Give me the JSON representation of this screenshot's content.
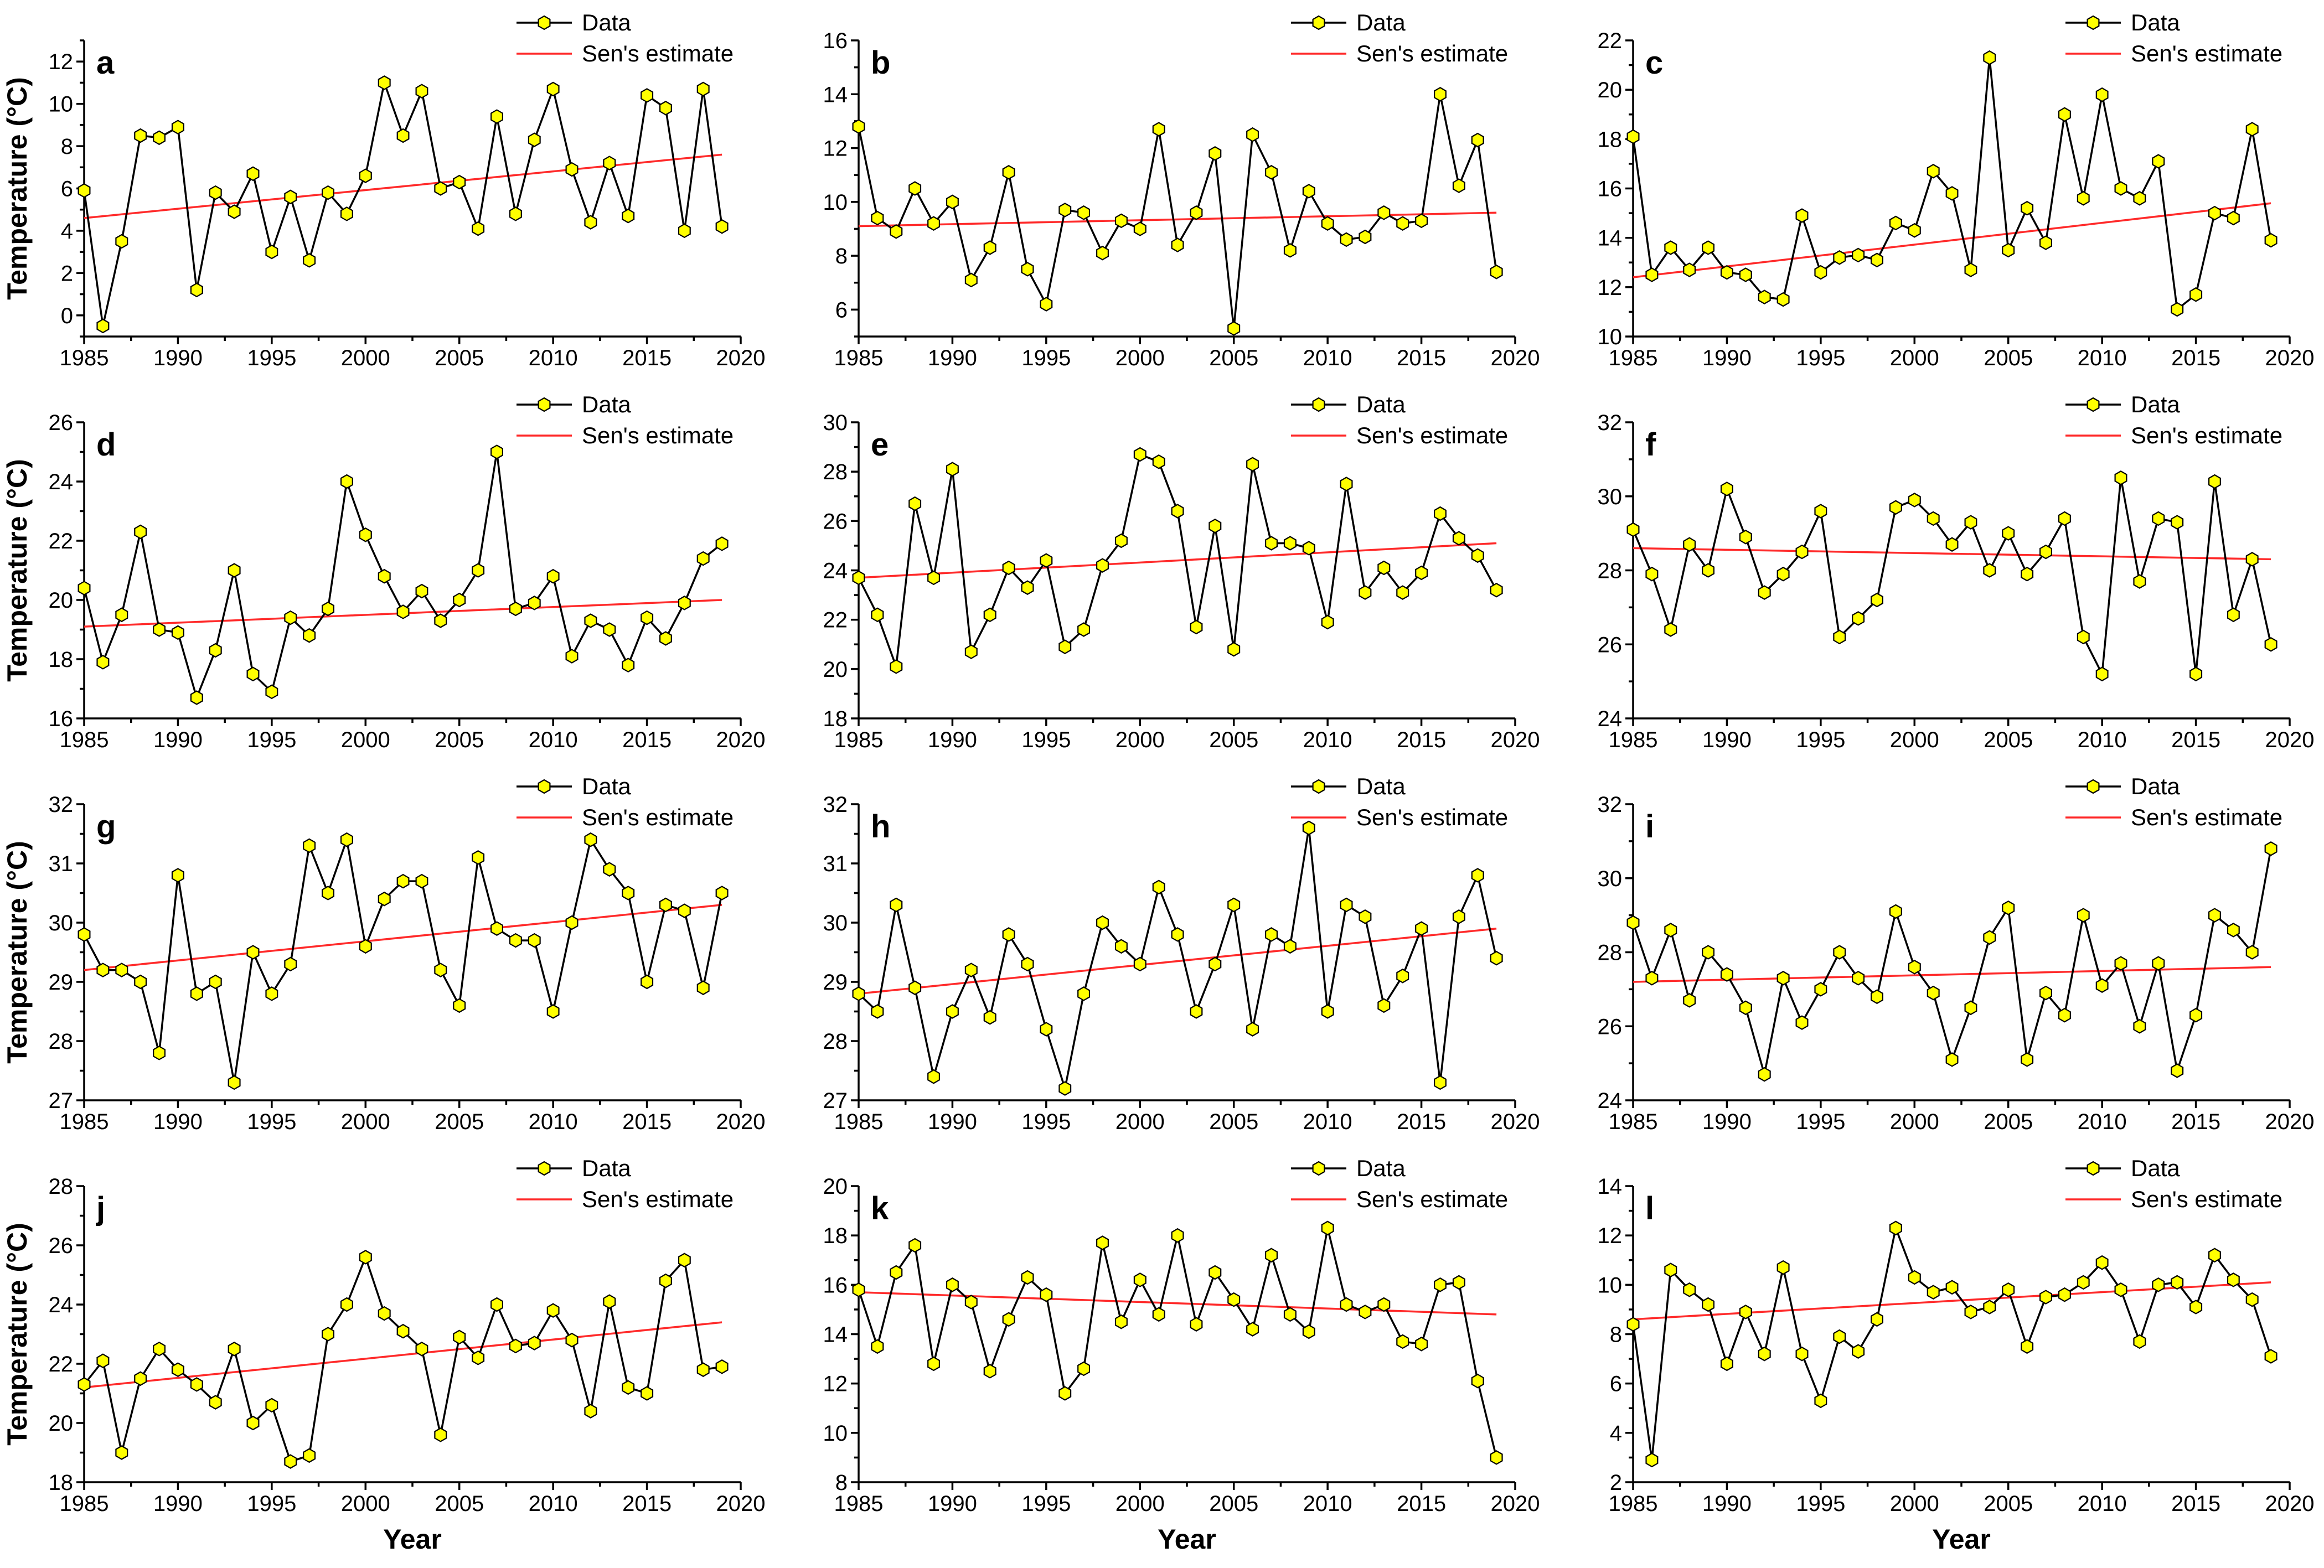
{
  "colors": {
    "data_line": "#000000",
    "marker_fill": "#ffff00",
    "trend_line": "#ff2a2a",
    "axis": "#000000"
  },
  "labels": {
    "ylabel": "Temperature (°C)",
    "xlabel": "Year"
  },
  "legend": {
    "data": "Data",
    "trend": "Sen's estimate"
  },
  "chart_data": [
    {
      "type": "line",
      "panel": "a",
      "x_range": [
        1985,
        2019
      ],
      "xlim": [
        1985,
        2020
      ],
      "xticks": [
        1985,
        1990,
        1995,
        2000,
        2005,
        2010,
        2015,
        2020
      ],
      "ylim": [
        -1,
        13
      ],
      "yticks": [
        0,
        2,
        4,
        6,
        8,
        10,
        12
      ],
      "series": [
        {
          "name": "Data",
          "values": [
            5.9,
            -0.5,
            3.5,
            8.5,
            8.4,
            8.9,
            1.2,
            5.8,
            4.9,
            6.7,
            3.0,
            5.6,
            2.6,
            5.8,
            4.8,
            6.6,
            11.0,
            8.5,
            10.6,
            6.0,
            6.3,
            4.1,
            9.4,
            4.8,
            8.3,
            10.7,
            6.9,
            4.4,
            7.2,
            4.7,
            10.4,
            9.8,
            4.0,
            10.7,
            4.2
          ]
        },
        {
          "name": "Sen's estimate",
          "start": 4.6,
          "end": 7.6
        }
      ]
    },
    {
      "type": "line",
      "panel": "b",
      "x_range": [
        1985,
        2019
      ],
      "xlim": [
        1985,
        2020
      ],
      "xticks": [
        1985,
        1990,
        1995,
        2000,
        2005,
        2010,
        2015,
        2020
      ],
      "ylim": [
        5,
        16
      ],
      "yticks": [
        6,
        8,
        10,
        12,
        14,
        16
      ],
      "series": [
        {
          "name": "Data",
          "values": [
            12.8,
            9.4,
            8.9,
            10.5,
            9.2,
            10.0,
            7.1,
            8.3,
            11.1,
            7.5,
            6.2,
            9.7,
            9.6,
            8.1,
            9.3,
            9.0,
            12.7,
            8.4,
            9.6,
            11.8,
            5.3,
            12.5,
            11.1,
            8.2,
            10.4,
            9.2,
            8.6,
            8.7,
            9.6,
            9.2,
            9.3,
            14.0,
            10.6,
            12.3,
            7.4
          ]
        },
        {
          "name": "Sen's estimate",
          "start": 9.1,
          "end": 9.6
        }
      ]
    },
    {
      "type": "line",
      "panel": "c",
      "x_range": [
        1985,
        2019
      ],
      "xlim": [
        1985,
        2020
      ],
      "xticks": [
        1985,
        1990,
        1995,
        2000,
        2005,
        2010,
        2015,
        2020
      ],
      "ylim": [
        10,
        22
      ],
      "yticks": [
        10,
        12,
        14,
        16,
        18,
        20,
        22
      ],
      "series": [
        {
          "name": "Data",
          "values": [
            18.1,
            12.5,
            13.6,
            12.7,
            13.6,
            12.6,
            12.5,
            11.6,
            11.5,
            14.9,
            12.6,
            13.2,
            13.3,
            13.1,
            14.6,
            14.3,
            16.7,
            15.8,
            12.7,
            21.3,
            13.5,
            15.2,
            13.8,
            19.0,
            15.6,
            19.8,
            16.0,
            15.6,
            17.1,
            11.1,
            11.7,
            15.0,
            14.8,
            18.4,
            13.9
          ]
        },
        {
          "name": "Sen's estimate",
          "start": 12.4,
          "end": 15.4
        }
      ]
    },
    {
      "type": "line",
      "panel": "d",
      "x_range": [
        1985,
        2019
      ],
      "xlim": [
        1985,
        2020
      ],
      "xticks": [
        1985,
        1990,
        1995,
        2000,
        2005,
        2010,
        2015,
        2020
      ],
      "ylim": [
        16,
        26
      ],
      "yticks": [
        16,
        18,
        20,
        22,
        24,
        26
      ],
      "series": [
        {
          "name": "Data",
          "values": [
            20.4,
            17.9,
            19.5,
            22.3,
            19.0,
            18.9,
            16.7,
            18.3,
            21.0,
            17.5,
            16.9,
            19.4,
            18.8,
            19.7,
            24.0,
            22.2,
            20.8,
            19.6,
            20.3,
            19.3,
            20.0,
            21.0,
            25.0,
            19.7,
            19.9,
            20.8,
            18.1,
            19.3,
            19.0,
            17.8,
            19.4,
            18.7,
            19.9,
            21.4,
            21.9
          ]
        },
        {
          "name": "Sen's estimate",
          "start": 19.1,
          "end": 20.0
        }
      ]
    },
    {
      "type": "line",
      "panel": "e",
      "x_range": [
        1985,
        2019
      ],
      "xlim": [
        1985,
        2020
      ],
      "xticks": [
        1985,
        1990,
        1995,
        2000,
        2005,
        2010,
        2015,
        2020
      ],
      "ylim": [
        18,
        30
      ],
      "yticks": [
        18,
        20,
        22,
        24,
        26,
        28,
        30
      ],
      "series": [
        {
          "name": "Data",
          "values": [
            23.7,
            22.2,
            20.1,
            26.7,
            23.7,
            28.1,
            20.7,
            22.2,
            24.1,
            23.3,
            24.4,
            20.9,
            21.6,
            24.2,
            25.2,
            28.7,
            28.4,
            26.4,
            21.7,
            25.8,
            20.8,
            28.3,
            25.1,
            25.1,
            24.9,
            21.9,
            27.5,
            23.1,
            24.1,
            23.1,
            23.9,
            26.3,
            25.3,
            24.6,
            23.2
          ]
        },
        {
          "name": "Sen's estimate",
          "start": 23.7,
          "end": 25.1
        }
      ]
    },
    {
      "type": "line",
      "panel": "f",
      "x_range": [
        1985,
        2019
      ],
      "xlim": [
        1985,
        2020
      ],
      "xticks": [
        1985,
        1990,
        1995,
        2000,
        2005,
        2010,
        2015,
        2020
      ],
      "ylim": [
        24,
        32
      ],
      "yticks": [
        24,
        26,
        28,
        30,
        32
      ],
      "series": [
        {
          "name": "Data",
          "values": [
            29.1,
            27.9,
            26.4,
            28.7,
            28.0,
            30.2,
            28.9,
            27.4,
            27.9,
            28.5,
            29.6,
            26.2,
            26.7,
            27.2,
            29.7,
            29.9,
            29.4,
            28.7,
            29.3,
            28.0,
            29.0,
            27.9,
            28.5,
            29.4,
            26.2,
            25.2,
            30.5,
            27.7,
            29.4,
            29.3,
            25.2,
            30.4,
            26.8,
            28.3,
            26.0
          ]
        },
        {
          "name": "Sen's estimate",
          "start": 28.6,
          "end": 28.3
        }
      ]
    },
    {
      "type": "line",
      "panel": "g",
      "x_range": [
        1985,
        2019
      ],
      "xlim": [
        1985,
        2020
      ],
      "xticks": [
        1985,
        1990,
        1995,
        2000,
        2005,
        2010,
        2015,
        2020
      ],
      "ylim": [
        27,
        32
      ],
      "yticks": [
        27,
        28,
        29,
        30,
        31,
        32
      ],
      "series": [
        {
          "name": "Data",
          "values": [
            29.8,
            29.2,
            29.2,
            29.0,
            27.8,
            30.8,
            28.8,
            29.0,
            27.3,
            29.5,
            28.8,
            29.3,
            31.3,
            30.5,
            31.4,
            29.6,
            30.4,
            30.7,
            30.7,
            29.2,
            28.6,
            31.1,
            29.9,
            29.7,
            29.7,
            28.5,
            30.0,
            31.4,
            30.9,
            30.5,
            29.0,
            30.3,
            30.2,
            28.9,
            30.5
          ]
        },
        {
          "name": "Sen's estimate",
          "start": 29.2,
          "end": 30.3
        }
      ]
    },
    {
      "type": "line",
      "panel": "h",
      "x_range": [
        1985,
        2019
      ],
      "xlim": [
        1985,
        2020
      ],
      "xticks": [
        1985,
        1990,
        1995,
        2000,
        2005,
        2010,
        2015,
        2020
      ],
      "ylim": [
        27,
        32
      ],
      "yticks": [
        27,
        28,
        29,
        30,
        31,
        32
      ],
      "series": [
        {
          "name": "Data",
          "values": [
            28.8,
            28.5,
            30.3,
            28.9,
            27.4,
            28.5,
            29.2,
            28.4,
            29.8,
            29.3,
            28.2,
            27.2,
            28.8,
            30.0,
            29.6,
            29.3,
            30.6,
            29.8,
            28.5,
            29.3,
            30.3,
            28.2,
            29.8,
            29.6,
            31.6,
            28.5,
            30.3,
            30.1,
            28.6,
            29.1,
            29.9,
            27.3,
            30.1,
            30.8,
            29.4
          ]
        },
        {
          "name": "Sen's estimate",
          "start": 28.8,
          "end": 29.9
        }
      ]
    },
    {
      "type": "line",
      "panel": "i",
      "x_range": [
        1985,
        2019
      ],
      "xlim": [
        1985,
        2020
      ],
      "xticks": [
        1985,
        1990,
        1995,
        2000,
        2005,
        2010,
        2015,
        2020
      ],
      "ylim": [
        24,
        32
      ],
      "yticks": [
        24,
        26,
        28,
        30,
        32
      ],
      "series": [
        {
          "name": "Data",
          "values": [
            28.8,
            27.3,
            28.6,
            26.7,
            28.0,
            27.4,
            26.5,
            24.7,
            27.3,
            26.1,
            27.0,
            28.0,
            27.3,
            26.8,
            29.1,
            27.6,
            26.9,
            25.1,
            26.5,
            28.4,
            29.2,
            25.1,
            26.9,
            26.3,
            29.0,
            27.1,
            27.7,
            26.0,
            27.7,
            24.8,
            26.3,
            29.0,
            28.6,
            28.0,
            30.8
          ]
        },
        {
          "name": "Sen's estimate",
          "start": 27.2,
          "end": 27.6
        }
      ]
    },
    {
      "type": "line",
      "panel": "j",
      "x_range": [
        1985,
        2019
      ],
      "xlim": [
        1985,
        2020
      ],
      "xticks": [
        1985,
        1990,
        1995,
        2000,
        2005,
        2010,
        2015,
        2020
      ],
      "ylim": [
        18,
        28
      ],
      "yticks": [
        18,
        20,
        22,
        24,
        26,
        28
      ],
      "series": [
        {
          "name": "Data",
          "values": [
            21.3,
            22.1,
            19.0,
            21.5,
            22.5,
            21.8,
            21.3,
            20.7,
            22.5,
            20.0,
            20.6,
            18.7,
            18.9,
            23.0,
            24.0,
            25.6,
            23.7,
            23.1,
            22.5,
            19.6,
            22.9,
            22.2,
            24.0,
            22.6,
            22.7,
            23.8,
            22.8,
            20.4,
            24.1,
            21.2,
            21.0,
            24.8,
            25.5,
            21.8,
            21.9
          ]
        },
        {
          "name": "Sen's estimate",
          "start": 21.2,
          "end": 23.4
        }
      ]
    },
    {
      "type": "line",
      "panel": "k",
      "x_range": [
        1985,
        2019
      ],
      "xlim": [
        1985,
        2020
      ],
      "xticks": [
        1985,
        1990,
        1995,
        2000,
        2005,
        2010,
        2015,
        2020
      ],
      "ylim": [
        8,
        20
      ],
      "yticks": [
        8,
        10,
        12,
        14,
        16,
        18,
        20
      ],
      "series": [
        {
          "name": "Data",
          "values": [
            15.8,
            13.5,
            16.5,
            17.6,
            12.8,
            16.0,
            15.3,
            12.5,
            14.6,
            16.3,
            15.6,
            11.6,
            12.6,
            17.7,
            14.5,
            16.2,
            14.8,
            18.0,
            14.4,
            16.5,
            15.4,
            14.2,
            17.2,
            14.8,
            14.1,
            18.3,
            15.2,
            14.9,
            15.2,
            13.7,
            13.6,
            16.0,
            16.1,
            12.1,
            9.0
          ]
        },
        {
          "name": "Sen's estimate",
          "start": 15.7,
          "end": 14.8
        }
      ]
    },
    {
      "type": "line",
      "panel": "l",
      "x_range": [
        1985,
        2019
      ],
      "xlim": [
        1985,
        2020
      ],
      "xticks": [
        1985,
        1990,
        1995,
        2000,
        2005,
        2010,
        2015,
        2020
      ],
      "ylim": [
        2,
        14
      ],
      "yticks": [
        2,
        4,
        6,
        8,
        10,
        12,
        14
      ],
      "series": [
        {
          "name": "Data",
          "values": [
            8.4,
            2.9,
            10.6,
            9.8,
            9.2,
            6.8,
            8.9,
            7.2,
            10.7,
            7.2,
            5.3,
            7.9,
            7.3,
            8.6,
            12.3,
            10.3,
            9.7,
            9.9,
            8.9,
            9.1,
            9.8,
            7.5,
            9.5,
            9.6,
            10.1,
            10.9,
            9.8,
            7.7,
            10.0,
            10.1,
            9.1,
            11.2,
            10.2,
            9.4,
            7.1
          ]
        },
        {
          "name": "Sen's estimate",
          "start": 8.6,
          "end": 10.1
        }
      ]
    }
  ]
}
